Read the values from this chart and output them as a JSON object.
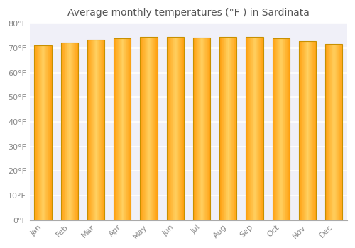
{
  "months": [
    "Jan",
    "Feb",
    "Mar",
    "Apr",
    "May",
    "Jun",
    "Jul",
    "Aug",
    "Sep",
    "Oct",
    "Nov",
    "Dec"
  ],
  "temperatures": [
    71.1,
    72.3,
    73.4,
    73.9,
    74.5,
    74.5,
    74.3,
    74.7,
    74.7,
    73.9,
    72.9,
    71.8
  ],
  "ylim": [
    0,
    80
  ],
  "yticks": [
    0,
    10,
    20,
    30,
    40,
    50,
    60,
    70,
    80
  ],
  "title": "Average monthly temperatures (°F ) in Sardinata",
  "bar_color_center": "#FFD060",
  "bar_color_edge": "#FFA010",
  "bar_border_color": "#C89000",
  "background_color": "#FFFFFF",
  "plot_bg_color": "#F0F0F8",
  "grid_color": "#FFFFFF",
  "title_fontsize": 10,
  "tick_fontsize": 8,
  "bar_width": 0.65
}
